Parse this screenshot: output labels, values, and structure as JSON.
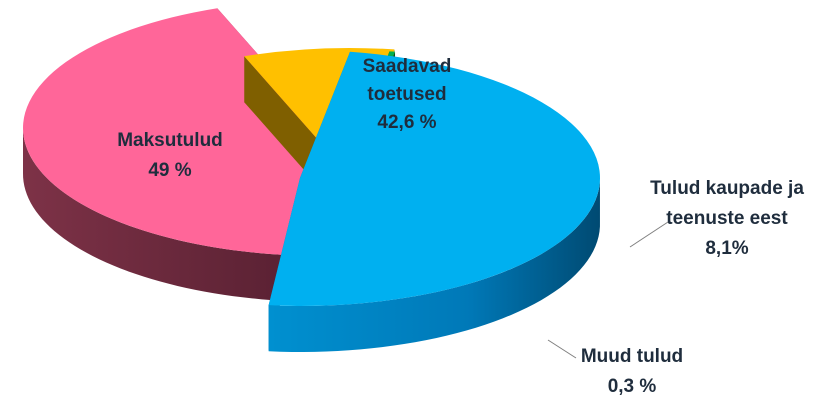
{
  "chart_data": {
    "type": "pie",
    "style": "3d-exploded",
    "title": "",
    "legend": "none",
    "slices": [
      {
        "label": "Saadavad toetused",
        "lines": [
          "Saadavad",
          "toetused",
          "42,6 %"
        ],
        "value": 42.6,
        "color": "#ff6699",
        "side_color": "#6e2a3e"
      },
      {
        "label": "Tulud kaupade ja teenuste eest",
        "lines": [
          "Tulud kaupade ja",
          "teenuste eest",
          "8,1%"
        ],
        "value": 8.1,
        "color": "#ffc000",
        "side_color": "#7f5f00"
      },
      {
        "label": "Muud tulud",
        "lines": [
          "Muud tulud",
          "0,3 %"
        ],
        "value": 0.3,
        "color": "#00b050",
        "side_color": "#0b4d1d"
      },
      {
        "label": "Maksutulud",
        "lines": [
          "Maksutulud",
          "49 %"
        ],
        "value": 49,
        "color": "#00b0f0",
        "side_color": "#0070a8"
      }
    ]
  }
}
